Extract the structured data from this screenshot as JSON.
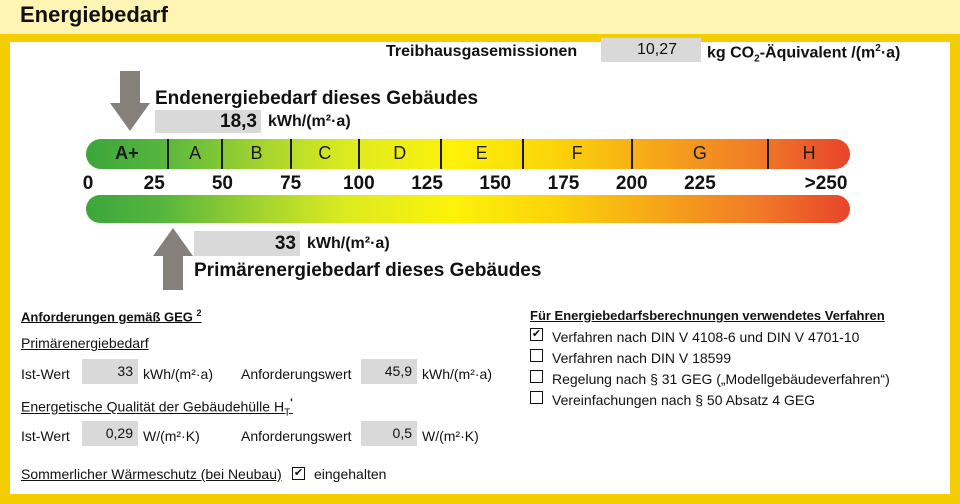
{
  "header": {
    "title": "Energiebedarf"
  },
  "emissions": {
    "label": "Treibhausgasemissionen",
    "value": "10,27",
    "unit_pre": "kg CO",
    "unit_sub": "2",
    "unit_mid": "-Äquivalent /(m",
    "unit_sup": "2",
    "unit_dot": "·a)"
  },
  "endenergie": {
    "title": "Endenergiebedarf dieses Gebäudes",
    "value": "18,3",
    "unit": "kWh/(m²·a)",
    "scale_value": 18.3
  },
  "primaerenergie": {
    "title": "Primärenergiebedarf dieses Gebäudes",
    "value": "33",
    "unit": "kWh/(m²·a)",
    "scale_value": 33
  },
  "scale": {
    "classes": [
      "A+",
      "A",
      "B",
      "C",
      "D",
      "E",
      "F",
      "G",
      "H"
    ],
    "ticks": [
      "0",
      "25",
      "50",
      "75",
      "100",
      "125",
      "150",
      "175",
      "200",
      "225",
      ">250"
    ]
  },
  "requirements": {
    "title": "Anforderungen gemäß GEG",
    "title_sup": "2",
    "primary_heading": "Primärenergiebedarf",
    "ist_label": "Ist-Wert",
    "primary_ist": "33",
    "primary_unit": "kWh/(m²·a)",
    "anf_label": "Anforderungswert",
    "primary_anf": "45,9",
    "hull_heading": "Energetische Qualität der Gebäudehülle H",
    "hull_sub": "T",
    "hull_sup": "'",
    "hull_ist": "0,29",
    "hull_unit": "W/(m²·K)",
    "hull_anf": "0,5",
    "summer_label": "Sommerlicher Wärmeschutz (bei Neubau)",
    "summer_check": "✔",
    "summer_value": "eingehalten"
  },
  "methods": {
    "title": "Für Energiebedarfsberechnungen verwendetes Verfahren",
    "items": [
      {
        "label": "Verfahren nach DIN V 4108-6 und DIN V 4701-10",
        "checked": "✔"
      },
      {
        "label": "Verfahren nach DIN V 18599",
        "checked": ""
      },
      {
        "label": "Regelung nach § 31 GEG („Modellgebäudeverfahren“)",
        "checked": ""
      },
      {
        "label": "Vereinfachungen nach § 50 Absatz 4 GEG",
        "checked": ""
      }
    ]
  }
}
